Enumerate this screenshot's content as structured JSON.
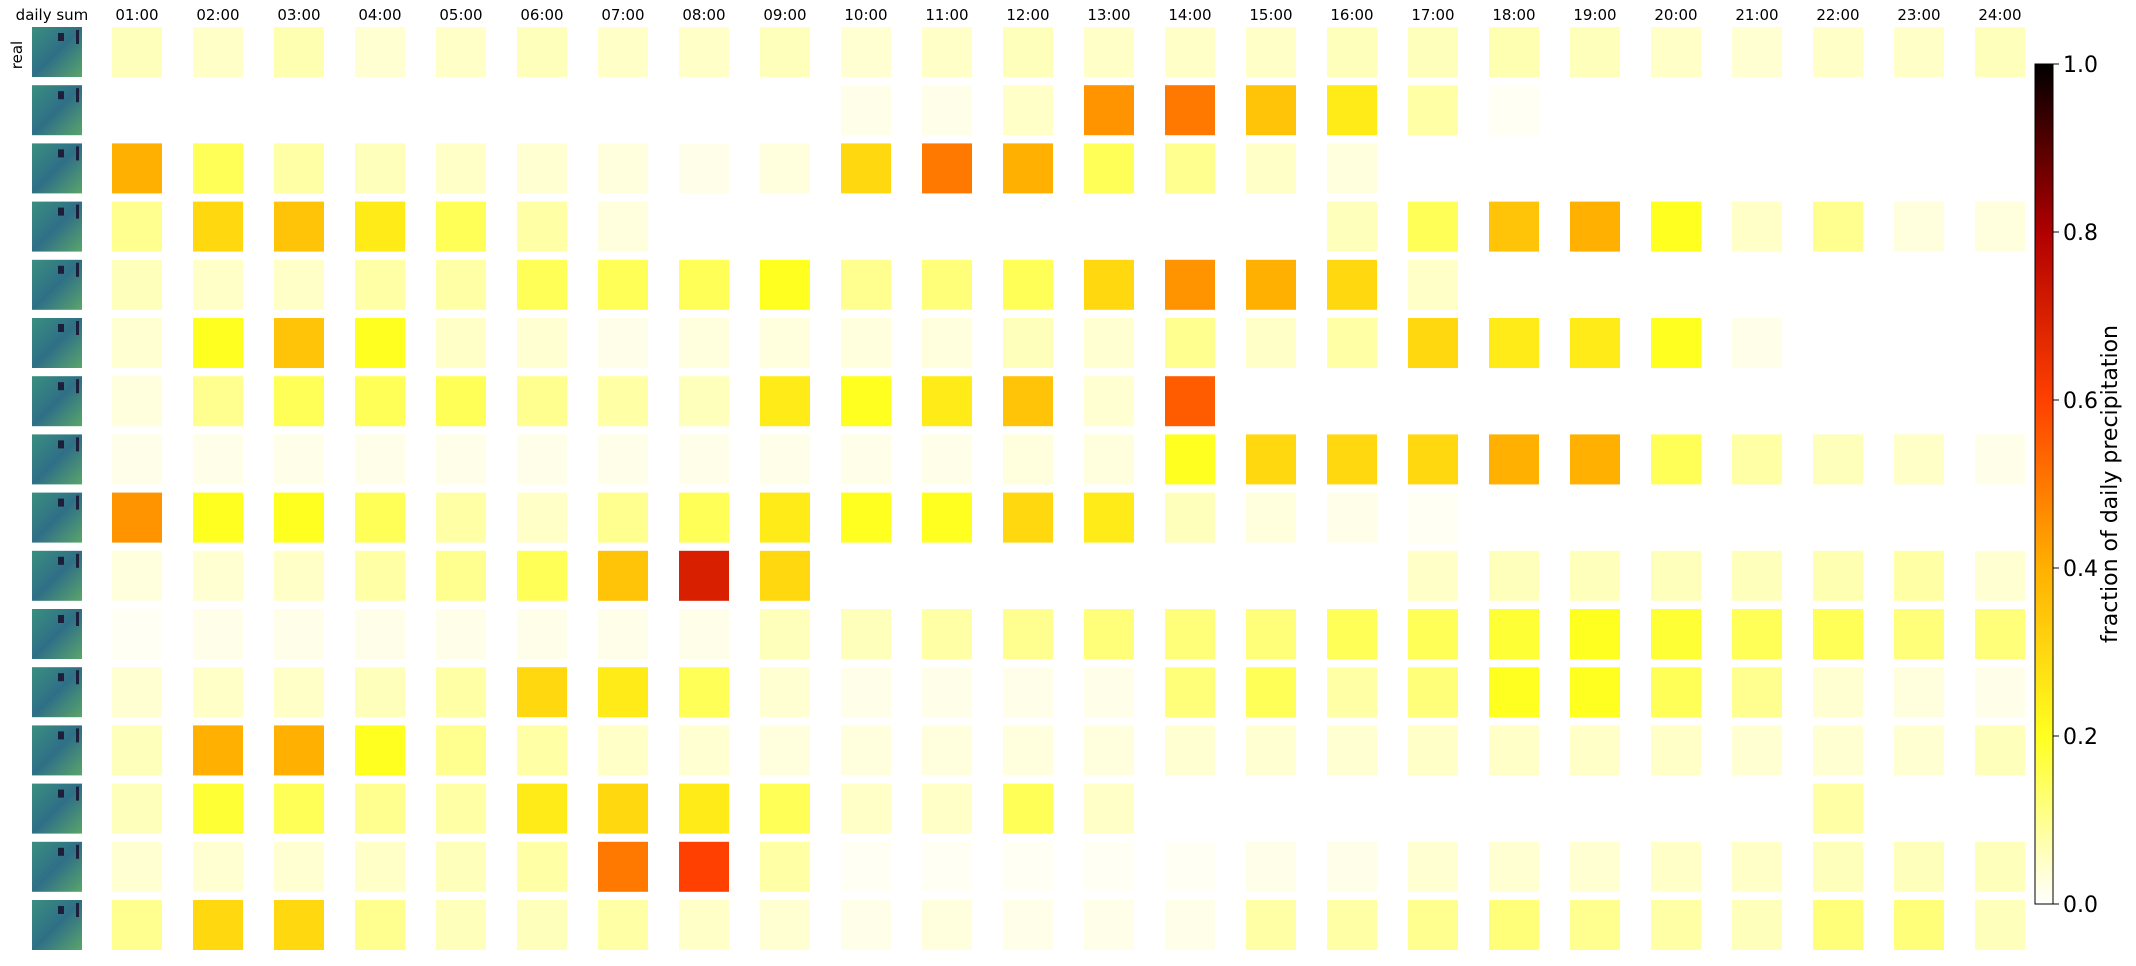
{
  "chart_data": {
    "type": "heatmap",
    "title": "",
    "first_column_label": "daily sum",
    "row_label": "real",
    "columns": [
      "01:00",
      "02:00",
      "03:00",
      "04:00",
      "05:00",
      "06:00",
      "07:00",
      "08:00",
      "09:00",
      "10:00",
      "11:00",
      "12:00",
      "13:00",
      "14:00",
      "15:00",
      "16:00",
      "17:00",
      "18:00",
      "19:00",
      "20:00",
      "21:00",
      "22:00",
      "23:00",
      "24:00"
    ],
    "colorbar": {
      "label": "fraction of daily precipitation",
      "range": [
        0,
        1
      ],
      "ticks": [
        "0.0",
        "0.2",
        "0.4",
        "0.6",
        "0.8",
        "1.0"
      ],
      "colormap": "hot_r"
    },
    "rows": [
      [
        0.06,
        0.05,
        0.07,
        0.04,
        0.05,
        0.06,
        0.05,
        0.05,
        0.06,
        0.04,
        0.05,
        0.06,
        0.05,
        0.05,
        0.05,
        0.06,
        0.06,
        0.07,
        0.06,
        0.05,
        0.04,
        0.05,
        0.05,
        0.06
      ],
      [
        0.0,
        0.0,
        0.0,
        0.0,
        0.0,
        0.0,
        0.0,
        0.0,
        0.0,
        0.02,
        0.02,
        0.05,
        0.45,
        0.5,
        0.35,
        0.25,
        0.08,
        0.01,
        0.0,
        0.0,
        0.0,
        0.0,
        0.0,
        0.0
      ],
      [
        0.4,
        0.15,
        0.08,
        0.06,
        0.05,
        0.04,
        0.03,
        0.02,
        0.03,
        0.3,
        0.5,
        0.4,
        0.15,
        0.1,
        0.05,
        0.03,
        0.0,
        0.0,
        0.0,
        0.0,
        0.0,
        0.0,
        0.0,
        0.0
      ],
      [
        0.1,
        0.3,
        0.35,
        0.25,
        0.15,
        0.08,
        0.03,
        0.0,
        0.0,
        0.0,
        0.0,
        0.0,
        0.0,
        0.0,
        0.0,
        0.06,
        0.15,
        0.35,
        0.4,
        0.2,
        0.05,
        0.1,
        0.03,
        0.03
      ],
      [
        0.06,
        0.05,
        0.05,
        0.08,
        0.08,
        0.15,
        0.15,
        0.15,
        0.2,
        0.1,
        0.12,
        0.15,
        0.3,
        0.45,
        0.4,
        0.3,
        0.05,
        0.0,
        0.0,
        0.0,
        0.0,
        0.0,
        0.0,
        0.0
      ],
      [
        0.04,
        0.2,
        0.35,
        0.2,
        0.05,
        0.04,
        0.02,
        0.03,
        0.03,
        0.03,
        0.03,
        0.06,
        0.04,
        0.1,
        0.05,
        0.08,
        0.3,
        0.25,
        0.25,
        0.2,
        0.02,
        0.0,
        0.0,
        0.0
      ],
      [
        0.03,
        0.1,
        0.15,
        0.15,
        0.15,
        0.1,
        0.08,
        0.06,
        0.25,
        0.2,
        0.25,
        0.35,
        0.04,
        0.55,
        0.0,
        0.0,
        0.0,
        0.0,
        0.0,
        0.0,
        0.0,
        0.0,
        0.0,
        0.0
      ],
      [
        0.02,
        0.02,
        0.02,
        0.02,
        0.02,
        0.02,
        0.02,
        0.02,
        0.02,
        0.02,
        0.02,
        0.03,
        0.03,
        0.2,
        0.3,
        0.3,
        0.3,
        0.4,
        0.4,
        0.15,
        0.08,
        0.06,
        0.05,
        0.02
      ],
      [
        0.45,
        0.2,
        0.2,
        0.15,
        0.08,
        0.05,
        0.1,
        0.15,
        0.25,
        0.2,
        0.2,
        0.3,
        0.25,
        0.06,
        0.03,
        0.02,
        0.01,
        0.0,
        0.0,
        0.0,
        0.0,
        0.0,
        0.0,
        0.0
      ],
      [
        0.03,
        0.04,
        0.05,
        0.08,
        0.1,
        0.15,
        0.35,
        0.7,
        0.3,
        0.0,
        0.0,
        0.0,
        0.0,
        0.0,
        0.0,
        0.0,
        0.05,
        0.06,
        0.06,
        0.06,
        0.06,
        0.07,
        0.08,
        0.04
      ],
      [
        0.01,
        0.02,
        0.02,
        0.02,
        0.02,
        0.02,
        0.02,
        0.02,
        0.06,
        0.06,
        0.08,
        0.1,
        0.12,
        0.12,
        0.12,
        0.15,
        0.15,
        0.18,
        0.2,
        0.18,
        0.15,
        0.15,
        0.12,
        0.12
      ],
      [
        0.04,
        0.05,
        0.05,
        0.06,
        0.08,
        0.3,
        0.25,
        0.15,
        0.04,
        0.02,
        0.02,
        0.02,
        0.02,
        0.12,
        0.15,
        0.08,
        0.12,
        0.2,
        0.2,
        0.15,
        0.1,
        0.04,
        0.03,
        0.02
      ],
      [
        0.06,
        0.4,
        0.4,
        0.2,
        0.1,
        0.08,
        0.05,
        0.04,
        0.03,
        0.03,
        0.03,
        0.03,
        0.03,
        0.04,
        0.04,
        0.04,
        0.05,
        0.05,
        0.05,
        0.05,
        0.04,
        0.04,
        0.04,
        0.06
      ],
      [
        0.06,
        0.18,
        0.15,
        0.1,
        0.08,
        0.25,
        0.3,
        0.25,
        0.15,
        0.05,
        0.05,
        0.15,
        0.05,
        0.0,
        0.0,
        0.0,
        0.0,
        0.0,
        0.0,
        0.0,
        0.0,
        0.08,
        0.0,
        0.0
      ],
      [
        0.04,
        0.04,
        0.04,
        0.05,
        0.06,
        0.08,
        0.5,
        0.6,
        0.08,
        0.01,
        0.01,
        0.01,
        0.01,
        0.01,
        0.02,
        0.02,
        0.04,
        0.04,
        0.04,
        0.05,
        0.05,
        0.06,
        0.06,
        0.06
      ],
      [
        0.1,
        0.3,
        0.3,
        0.1,
        0.06,
        0.06,
        0.08,
        0.05,
        0.04,
        0.02,
        0.03,
        0.02,
        0.02,
        0.02,
        0.08,
        0.08,
        0.1,
        0.12,
        0.1,
        0.08,
        0.06,
        0.12,
        0.12,
        0.06
      ]
    ]
  }
}
